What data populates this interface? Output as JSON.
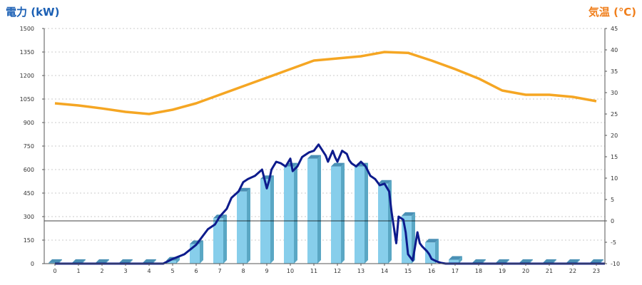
{
  "chart_data": {
    "type": "bar",
    "left_title": "電力 (kW)",
    "right_title": "気温 (℃)",
    "categories": [
      "0",
      "1",
      "2",
      "3",
      "4",
      "5",
      "6",
      "7",
      "8",
      "9",
      "10",
      "11",
      "12",
      "13",
      "14",
      "15",
      "16",
      "17",
      "18",
      "19",
      "20",
      "21",
      "22",
      "23"
    ],
    "y_left": {
      "min": 0,
      "max": 1500,
      "ticks": [
        "0",
        "150",
        "300",
        "450",
        "600",
        "750",
        "900",
        "1050",
        "1200",
        "1350",
        "1500"
      ]
    },
    "y_right": {
      "min": -10,
      "max": 45,
      "ticks": [
        "-10",
        "-5",
        "0",
        "5",
        "10",
        "15",
        "20",
        "25",
        "30",
        "35",
        "40",
        "45"
      ]
    },
    "bars": {
      "name": "hourly-power",
      "values": [
        5,
        5,
        5,
        5,
        5,
        20,
        125,
        290,
        460,
        540,
        620,
        670,
        620,
        620,
        510,
        305,
        135,
        25,
        5,
        5,
        5,
        5,
        5,
        5
      ]
    },
    "power_line": {
      "name": "power-realtime",
      "x": [
        0,
        4.6,
        5,
        5.5,
        6,
        6.3,
        6.5,
        6.8,
        7,
        7.3,
        7.5,
        7.8,
        8,
        8.2,
        8.5,
        8.8,
        9,
        9.1,
        9.2,
        9.4,
        9.6,
        9.8,
        10,
        10.1,
        10.3,
        10.5,
        10.8,
        11,
        11.2,
        11.5,
        11.6,
        11.8,
        11.9,
        12,
        12.2,
        12.4,
        12.5,
        12.6,
        12.8,
        13,
        13.2,
        13.4,
        13.6,
        13.8,
        14,
        14.2,
        14.3,
        14.5,
        14.6,
        14.8,
        14.9,
        15,
        15.2,
        15.4,
        15.5,
        15.6,
        15.8,
        15.9,
        16,
        16.2,
        16.4,
        16.6,
        16.8,
        17,
        17.3,
        23.5
      ],
      "y": [
        0,
        0,
        30,
        60,
        120,
        180,
        220,
        250,
        300,
        350,
        420,
        460,
        520,
        540,
        560,
        600,
        480,
        530,
        600,
        650,
        640,
        620,
        670,
        590,
        620,
        680,
        710,
        720,
        760,
        690,
        650,
        720,
        680,
        650,
        720,
        700,
        660,
        640,
        620,
        650,
        620,
        560,
        540,
        500,
        510,
        460,
        330,
        130,
        300,
        280,
        200,
        60,
        20,
        200,
        130,
        110,
        80,
        60,
        30,
        15,
        5,
        0,
        0,
        0,
        0,
        0
      ]
    },
    "temperature": {
      "name": "air-temperature",
      "x": [
        0,
        1,
        2,
        3,
        4,
        5,
        6,
        7,
        8,
        9,
        10,
        11,
        12,
        13,
        14,
        15,
        16,
        17,
        18,
        19,
        20,
        21,
        22,
        23
      ],
      "y": [
        27.5,
        27.0,
        26.3,
        25.5,
        25.0,
        26.0,
        27.5,
        29.5,
        31.5,
        33.5,
        35.5,
        37.5,
        38.0,
        38.5,
        39.5,
        39.3,
        37.5,
        35.5,
        33.3,
        30.5,
        29.5,
        29.5,
        29.0,
        28.0
      ]
    },
    "reference_line": {
      "name": "zero-temperature-line",
      "axis": "right",
      "value": 0
    },
    "grid": true,
    "legend": "none",
    "colors": {
      "bar_front": "#87ceeb",
      "bar_side": "#5aa7c4",
      "bar_top": "#4a90b5",
      "power_line": "#0d1b8c",
      "temperature": "#f5a623",
      "grid": "#bbbbbb",
      "left_title": "#1a5fb4",
      "right_title": "#f07f1c"
    }
  }
}
